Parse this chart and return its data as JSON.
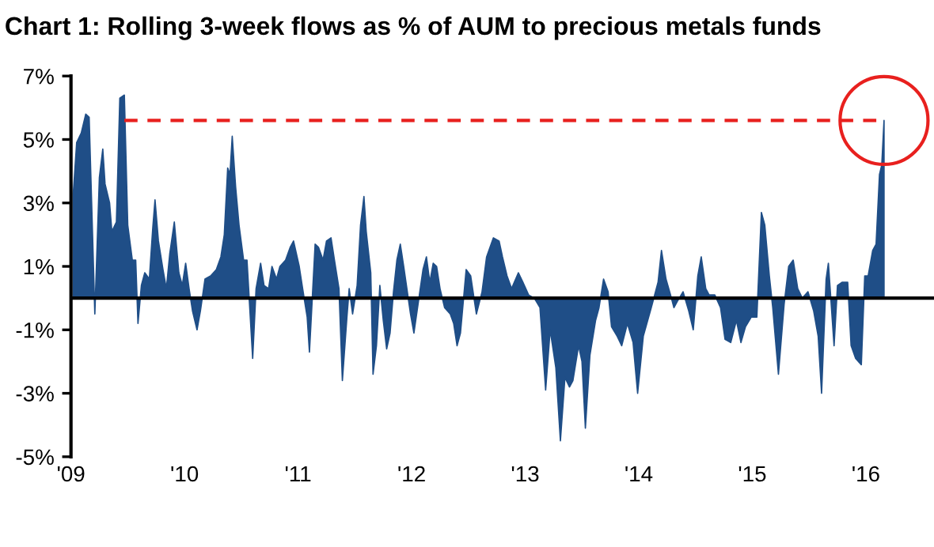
{
  "chart_data": {
    "type": "area",
    "title": "Chart 1: Rolling 3-week flows as % of AUM to precious metals funds",
    "x": [
      2009.02,
      2009.05,
      2009.09,
      2009.13,
      2009.16,
      2009.19,
      2009.21,
      2009.25,
      2009.28,
      2009.3,
      2009.34,
      2009.36,
      2009.4,
      2009.43,
      2009.47,
      2009.5,
      2009.54,
      2009.57,
      2009.59,
      2009.62,
      2009.65,
      2009.69,
      2009.72,
      2009.74,
      2009.77,
      2009.81,
      2009.84,
      2009.87,
      2009.91,
      2009.95,
      2009.98,
      2010.01,
      2010.04,
      2010.07,
      2010.11,
      2010.14,
      2010.18,
      2010.23,
      2010.28,
      2010.32,
      2010.35,
      2010.38,
      2010.4,
      2010.42,
      2010.45,
      2010.48,
      2010.52,
      2010.55,
      2010.6,
      2010.63,
      2010.67,
      2010.7,
      2010.74,
      2010.77,
      2010.81,
      2010.84,
      2010.89,
      2010.93,
      2010.96,
      2011.01,
      2011.04,
      2011.08,
      2011.1,
      2011.15,
      2011.18,
      2011.22,
      2011.25,
      2011.29,
      2011.32,
      2011.36,
      2011.39,
      2011.43,
      2011.45,
      2011.48,
      2011.52,
      2011.55,
      2011.58,
      2011.6,
      2011.64,
      2011.66,
      2011.69,
      2011.72,
      2011.75,
      2011.78,
      2011.81,
      2011.84,
      2011.87,
      2011.9,
      2011.93,
      2011.95,
      2011.99,
      2012.02,
      2012.06,
      2012.1,
      2012.13,
      2012.16,
      2012.19,
      2012.22,
      2012.25,
      2012.29,
      2012.34,
      2012.37,
      2012.4,
      2012.43,
      2012.48,
      2012.52,
      2012.57,
      2012.62,
      2012.66,
      2012.72,
      2012.77,
      2012.8,
      2012.84,
      2012.88,
      2012.94,
      2012.98,
      2013.03,
      2013.08,
      2013.13,
      2013.18,
      2013.22,
      2013.27,
      2013.31,
      2013.35,
      2013.39,
      2013.42,
      2013.47,
      2013.5,
      2013.53,
      2013.57,
      2013.62,
      2013.65,
      2013.69,
      2013.73,
      2013.76,
      2013.81,
      2013.85,
      2013.9,
      2013.95,
      2013.99,
      2014.04,
      2014.11,
      2014.17,
      2014.2,
      2014.24,
      2014.28,
      2014.31,
      2014.34,
      2014.39,
      2014.44,
      2014.48,
      2014.52,
      2014.55,
      2014.59,
      2014.62,
      2014.67,
      2014.72,
      2014.76,
      2014.81,
      2014.86,
      2014.9,
      2014.94,
      2014.99,
      2015.04,
      2015.08,
      2015.11,
      2015.15,
      2015.18,
      2015.23,
      2015.28,
      2015.32,
      2015.36,
      2015.4,
      2015.44,
      2015.49,
      2015.54,
      2015.58,
      2015.61,
      2015.65,
      2015.67,
      2015.72,
      2015.75,
      2015.79,
      2015.84,
      2015.87,
      2015.91,
      2015.96,
      2015.99,
      2016.02,
      2016.06,
      2016.09,
      2016.12,
      2016.14,
      2016.16
    ],
    "values": [
      3.3,
      4.9,
      5.2,
      5.8,
      5.7,
      2.0,
      -0.5,
      3.8,
      4.7,
      3.6,
      3.0,
      2.1,
      2.4,
      6.3,
      6.4,
      2.3,
      1.2,
      1.2,
      -0.8,
      0.4,
      0.8,
      0.6,
      2.2,
      3.1,
      1.8,
      0.9,
      0.3,
      1.4,
      2.4,
      0.8,
      0.4,
      1.1,
      0.3,
      -0.4,
      -1.0,
      -0.4,
      0.6,
      0.7,
      0.9,
      1.3,
      2.0,
      4.1,
      3.9,
      5.1,
      3.5,
      2.3,
      1.2,
      1.2,
      -1.9,
      0.3,
      1.1,
      0.4,
      0.3,
      1.0,
      0.6,
      1.0,
      1.2,
      1.6,
      1.8,
      1.0,
      0.3,
      -0.6,
      -1.7,
      1.7,
      1.6,
      1.2,
      1.8,
      1.9,
      1.2,
      0.3,
      -2.6,
      -0.6,
      0.3,
      -0.5,
      0.4,
      2.3,
      3.2,
      2.1,
      0.8,
      -2.4,
      -1.5,
      0.4,
      -0.7,
      -1.6,
      -1.1,
      0.2,
      1.2,
      1.7,
      1.0,
      0.5,
      -0.5,
      -1.1,
      -0.1,
      0.9,
      1.3,
      0.5,
      1.1,
      1.0,
      0.3,
      -0.3,
      -0.5,
      -0.8,
      -1.5,
      -1.1,
      0.9,
      0.7,
      -0.5,
      0.2,
      1.3,
      1.9,
      1.8,
      1.3,
      0.7,
      0.3,
      0.8,
      0.5,
      0.1,
      0.0,
      -0.3,
      -2.9,
      -1.0,
      -2.2,
      -4.5,
      -2.5,
      -2.8,
      -2.6,
      -1.5,
      -2.0,
      -4.1,
      -1.8,
      -0.7,
      -0.3,
      0.6,
      0.2,
      -0.9,
      -1.2,
      -1.5,
      -0.8,
      -1.4,
      -3.0,
      -1.2,
      -0.3,
      0.5,
      1.5,
      0.6,
      0.1,
      -0.3,
      -0.1,
      0.2,
      -0.4,
      -1.0,
      0.7,
      1.3,
      0.3,
      0.1,
      0.1,
      -0.3,
      -1.3,
      -1.4,
      -0.7,
      -1.4,
      -0.9,
      -0.6,
      -0.6,
      2.7,
      2.3,
      0.7,
      -0.3,
      -2.4,
      -0.2,
      1.0,
      1.2,
      0.3,
      0.0,
      0.2,
      -0.4,
      -1.2,
      -3.0,
      0.6,
      1.1,
      -1.5,
      0.4,
      0.5,
      0.5,
      -1.5,
      -1.9,
      -2.1,
      0.7,
      0.7,
      1.5,
      1.7,
      3.9,
      4.2,
      5.6
    ],
    "color": "#1f4e87",
    "xlim": [
      2009,
      2016.6
    ],
    "xticks": [
      {
        "value": 2009,
        "label": "'09"
      },
      {
        "value": 2010,
        "label": "'10"
      },
      {
        "value": 2011,
        "label": "'11"
      },
      {
        "value": 2012,
        "label": "'12"
      },
      {
        "value": 2013,
        "label": "'13"
      },
      {
        "value": 2014,
        "label": "'14"
      },
      {
        "value": 2015,
        "label": "'15"
      },
      {
        "value": 2016,
        "label": "'16"
      }
    ],
    "ylim": [
      -5,
      7
    ],
    "yticks": [
      {
        "value": -5,
        "label": "-5%"
      },
      {
        "value": -3,
        "label": "-3%"
      },
      {
        "value": -1,
        "label": "-1%"
      },
      {
        "value": 1,
        "label": "1%"
      },
      {
        "value": 3,
        "label": "3%"
      },
      {
        "value": 5,
        "label": "5%"
      },
      {
        "value": 7,
        "label": "7%"
      }
    ],
    "ref_lines": [
      {
        "axis": "y",
        "value": 0,
        "color": "#000000",
        "line_style": "solid"
      },
      {
        "axis": "y",
        "value": 5.6,
        "color": "#e8201e",
        "line_style": "dashed"
      }
    ],
    "grid": false,
    "legend": false
  }
}
